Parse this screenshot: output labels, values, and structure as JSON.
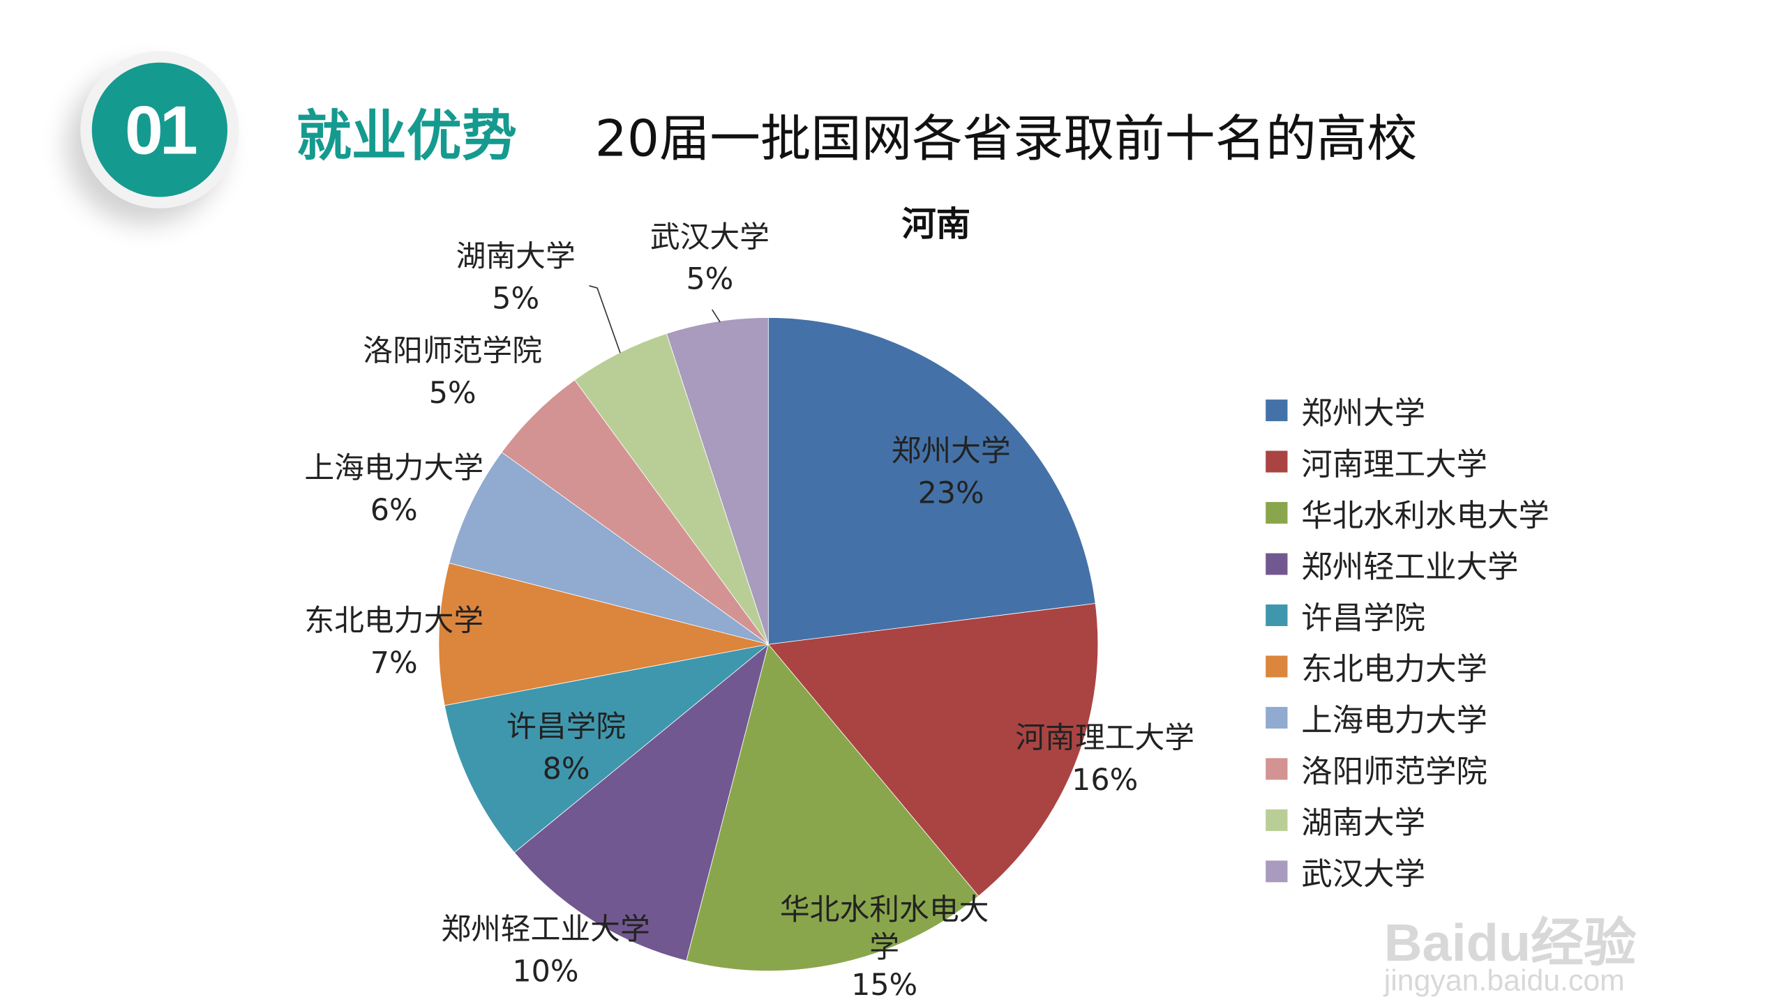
{
  "badge": "01",
  "section_title": "就业优势",
  "page_title": "20届一批国网各省录取前十名的高校",
  "watermark": {
    "text": "Baidu经验",
    "url_text": "jingyan.baidu.com"
  },
  "chart_data": {
    "type": "pie",
    "title": "河南",
    "categories": [
      "郑州大学",
      "河南理工大学",
      "华北水利水电大学",
      "郑州轻工业大学",
      "许昌学院",
      "东北电力大学",
      "上海电力大学",
      "洛阳师范学院",
      "湖南大学",
      "武汉大学"
    ],
    "values": [
      23,
      16,
      15,
      10,
      8,
      7,
      6,
      5,
      5,
      5
    ],
    "labels": [
      "23%",
      "16%",
      "15%",
      "10%",
      "8%",
      "7%",
      "6%",
      "5%",
      "5%",
      "5%"
    ],
    "colors": [
      "#4472a8",
      "#a94442",
      "#8aa64c",
      "#725890",
      "#3f97ad",
      "#dc853c",
      "#90aad0",
      "#d39392",
      "#b9ce96",
      "#a99bbd"
    ],
    "legend_position": "right"
  }
}
